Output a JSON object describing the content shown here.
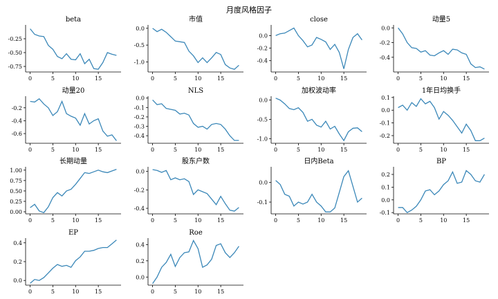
{
  "figure": {
    "title": "月度风格因子"
  },
  "chart_data": [
    {
      "type": "line",
      "title": "beta",
      "x": [
        0,
        1,
        2,
        3,
        4,
        5,
        6,
        7,
        8,
        9,
        10,
        11,
        12,
        13,
        14,
        15,
        16,
        17,
        18,
        19
      ],
      "values": [
        -0.07,
        -0.17,
        -0.2,
        -0.21,
        -0.37,
        -0.44,
        -0.57,
        -0.61,
        -0.52,
        -0.62,
        -0.63,
        -0.52,
        -0.7,
        -0.62,
        -0.79,
        -0.8,
        -0.68,
        -0.5,
        -0.53,
        -0.55
      ],
      "xticks": [
        0,
        5,
        10,
        15
      ],
      "yticks": [
        -0.25,
        -0.5,
        -0.75
      ],
      "ytick_labels": [
        "-0.25",
        "-0.50",
        "-0.75"
      ],
      "ylim": [
        -0.85,
        0.0
      ]
    },
    {
      "type": "line",
      "title": "市值",
      "x": [
        0,
        1,
        2,
        3,
        4,
        5,
        6,
        7,
        8,
        9,
        10,
        11,
        12,
        13,
        14,
        15,
        16,
        17,
        18,
        19
      ],
      "values": [
        0.0,
        -0.1,
        -0.03,
        -0.12,
        -0.25,
        -0.38,
        -0.4,
        -0.42,
        -0.68,
        -0.82,
        -1.02,
        -0.88,
        -1.02,
        -0.88,
        -0.72,
        -0.78,
        -1.08,
        -1.18,
        -1.22,
        -1.1
      ],
      "xticks": [
        0,
        5,
        10,
        15
      ],
      "yticks": [
        0.0,
        -0.5,
        -1.0
      ],
      "ytick_labels": [
        "0.0",
        "-0.5",
        "-1.0"
      ],
      "ylim": [
        -1.3,
        0.1
      ]
    },
    {
      "type": "line",
      "title": "close",
      "x": [
        0,
        1,
        2,
        3,
        4,
        5,
        6,
        7,
        8,
        9,
        10,
        11,
        12,
        13,
        14,
        15,
        16,
        17,
        18,
        19
      ],
      "values": [
        0.0,
        0.03,
        0.04,
        0.08,
        0.12,
        0.0,
        -0.08,
        -0.18,
        -0.15,
        -0.03,
        -0.06,
        -0.1,
        -0.22,
        -0.14,
        -0.27,
        -0.53,
        -0.22,
        -0.03,
        0.03,
        -0.07
      ],
      "xticks": [
        0,
        5,
        10,
        15
      ],
      "yticks": [
        0.0,
        -0.2,
        -0.4
      ],
      "ytick_labels": [
        "0.0",
        "-0.2",
        "-0.4"
      ],
      "ylim": [
        -0.58,
        0.17
      ]
    },
    {
      "type": "line",
      "title": "动量5",
      "x": [
        0,
        1,
        2,
        3,
        4,
        5,
        6,
        7,
        8,
        9,
        10,
        11,
        12,
        13,
        14,
        15,
        16,
        17,
        18,
        19
      ],
      "values": [
        0.0,
        -0.08,
        -0.2,
        -0.27,
        -0.28,
        -0.33,
        -0.31,
        -0.37,
        -0.38,
        -0.34,
        -0.31,
        -0.36,
        -0.29,
        -0.3,
        -0.34,
        -0.36,
        -0.49,
        -0.54,
        -0.53,
        -0.56
      ],
      "xticks": [
        0,
        5,
        10,
        15
      ],
      "yticks": [
        0.0,
        -0.2,
        -0.4
      ],
      "ytick_labels": [
        "0.0",
        "-0.2",
        "-0.4"
      ],
      "ylim": [
        -0.6,
        0.04
      ]
    },
    {
      "type": "line",
      "title": "动量20",
      "x": [
        0,
        1,
        2,
        3,
        4,
        5,
        6,
        7,
        8,
        9,
        10,
        11,
        12,
        13,
        14,
        15,
        16,
        17,
        18,
        19
      ],
      "values": [
        -0.1,
        -0.11,
        -0.06,
        -0.14,
        -0.2,
        -0.32,
        -0.26,
        -0.1,
        -0.29,
        -0.33,
        -0.36,
        -0.47,
        -0.29,
        -0.45,
        -0.4,
        -0.37,
        -0.56,
        -0.64,
        -0.62,
        -0.71
      ],
      "xticks": [
        0,
        5,
        10,
        15
      ],
      "yticks": [
        -0.2,
        -0.4,
        -0.6
      ],
      "ytick_labels": [
        "-0.2",
        "-0.4",
        "-0.6"
      ],
      "ylim": [
        -0.75,
        -0.02
      ]
    },
    {
      "type": "line",
      "title": "NLS",
      "x": [
        0,
        1,
        2,
        3,
        4,
        5,
        6,
        7,
        8,
        9,
        10,
        11,
        12,
        13,
        14,
        15,
        16,
        17,
        18,
        19
      ],
      "values": [
        -0.02,
        -0.07,
        -0.06,
        -0.11,
        -0.12,
        -0.13,
        -0.17,
        -0.16,
        -0.18,
        -0.27,
        -0.31,
        -0.3,
        -0.33,
        -0.28,
        -0.27,
        -0.28,
        -0.33,
        -0.4,
        -0.45,
        -0.45
      ],
      "xticks": [
        0,
        5,
        10,
        15
      ],
      "yticks": [
        0.0,
        -0.1,
        -0.2,
        -0.3,
        -0.4
      ],
      "ytick_labels": [
        "0.0",
        "-0.1",
        "-0.2",
        "-0.3",
        "-0.4"
      ],
      "ylim": [
        -0.48,
        0.02
      ]
    },
    {
      "type": "line",
      "title": "加权波动率",
      "x": [
        0,
        1,
        2,
        3,
        4,
        5,
        6,
        7,
        8,
        9,
        10,
        11,
        12,
        13,
        14,
        15,
        16,
        17,
        18,
        19
      ],
      "values": [
        0.05,
        0.0,
        -0.1,
        -0.22,
        -0.25,
        -0.2,
        -0.32,
        -0.55,
        -0.5,
        -0.65,
        -0.7,
        -0.55,
        -0.75,
        -0.68,
        -0.88,
        -1.05,
        -0.82,
        -0.73,
        -0.72,
        -0.82
      ],
      "xticks": [
        0,
        5,
        10,
        15
      ],
      "yticks": [
        0.0,
        -0.5,
        -1.0
      ],
      "ytick_labels": [
        "0.0",
        "-0.5",
        "-1.0"
      ],
      "ylim": [
        -1.12,
        0.1
      ]
    },
    {
      "type": "line",
      "title": "1年日均换手",
      "x": [
        0,
        1,
        2,
        3,
        4,
        5,
        6,
        7,
        8,
        9,
        10,
        11,
        12,
        13,
        14,
        15,
        16,
        17,
        18,
        19
      ],
      "values": [
        0.02,
        0.04,
        0.0,
        0.06,
        0.03,
        0.09,
        0.05,
        0.07,
        0.02,
        -0.07,
        -0.01,
        -0.04,
        -0.08,
        -0.13,
        -0.18,
        -0.11,
        -0.16,
        -0.24,
        -0.24,
        -0.22
      ],
      "xticks": [
        0,
        5,
        10,
        15
      ],
      "yticks": [
        0.1,
        0.0,
        -0.1,
        -0.2
      ],
      "ytick_labels": [
        "0.1",
        "0.0",
        "-0.1",
        "-0.2"
      ],
      "ylim": [
        -0.26,
        0.11
      ]
    },
    {
      "type": "line",
      "title": "长期动量",
      "x": [
        0,
        1,
        2,
        3,
        4,
        5,
        6,
        7,
        8,
        9,
        10,
        11,
        12,
        13,
        14,
        15,
        16,
        17,
        18,
        19
      ],
      "values": [
        0.1,
        0.18,
        0.02,
        -0.02,
        0.12,
        0.34,
        0.46,
        0.38,
        0.5,
        0.54,
        0.66,
        0.8,
        0.94,
        0.92,
        0.96,
        1.0,
        0.96,
        0.94,
        0.98,
        1.02
      ],
      "xticks": [
        0,
        5,
        10,
        15
      ],
      "yticks": [
        0.0,
        0.25,
        0.5,
        0.75,
        1.0
      ],
      "ytick_labels": [
        "0.00",
        "0.25",
        "0.50",
        "0.75",
        "1.00"
      ],
      "ylim": [
        -0.05,
        1.08
      ]
    },
    {
      "type": "line",
      "title": "股东户数",
      "x": [
        0,
        1,
        2,
        3,
        4,
        5,
        6,
        7,
        8,
        9,
        10,
        11,
        12,
        13,
        14,
        15,
        16,
        17,
        18,
        19
      ],
      "values": [
        0.02,
        0.01,
        -0.01,
        0.01,
        -0.09,
        -0.07,
        -0.09,
        -0.08,
        -0.11,
        -0.25,
        -0.2,
        -0.22,
        -0.24,
        -0.3,
        -0.36,
        -0.27,
        -0.35,
        -0.42,
        -0.43,
        -0.39
      ],
      "xticks": [
        0,
        5,
        10,
        15
      ],
      "yticks": [
        0.0,
        -0.2,
        -0.4
      ],
      "ytick_labels": [
        "0.0",
        "-0.2",
        "-0.4"
      ],
      "ylim": [
        -0.46,
        0.05
      ]
    },
    {
      "type": "line",
      "title": "日内Beta",
      "x": [
        0,
        1,
        2,
        3,
        4,
        5,
        6,
        7,
        8,
        9,
        10,
        11,
        12,
        13,
        14,
        15,
        16,
        17,
        18,
        19
      ],
      "values": [
        0.01,
        -0.01,
        -0.06,
        -0.07,
        -0.12,
        -0.1,
        -0.11,
        -0.1,
        -0.06,
        -0.1,
        -0.12,
        -0.15,
        -0.15,
        -0.13,
        -0.05,
        0.03,
        0.06,
        -0.02,
        -0.1,
        -0.08
      ],
      "xticks": [
        0,
        5,
        10,
        15
      ],
      "yticks": [
        0.0,
        -0.1
      ],
      "ytick_labels": [
        "0.0",
        "-0.1"
      ],
      "ylim": [
        -0.16,
        0.08
      ]
    },
    {
      "type": "line",
      "title": "BP",
      "x": [
        0,
        1,
        2,
        3,
        4,
        5,
        6,
        7,
        8,
        9,
        10,
        11,
        12,
        13,
        14,
        15,
        16,
        17,
        18,
        19
      ],
      "values": [
        -0.06,
        -0.06,
        -0.1,
        -0.08,
        -0.05,
        0.0,
        0.07,
        0.08,
        0.04,
        0.07,
        0.12,
        0.15,
        0.22,
        0.13,
        0.14,
        0.23,
        0.2,
        0.15,
        0.14,
        0.2
      ],
      "xticks": [
        0,
        5,
        10,
        15
      ],
      "yticks": [
        0.2,
        0.1,
        0.0,
        -0.1
      ],
      "ytick_labels": [
        "0.2",
        "0.1",
        "0.0",
        "-0.1"
      ],
      "ylim": [
        -0.11,
        0.26
      ]
    },
    {
      "type": "line",
      "title": "EP",
      "x": [
        0,
        1,
        2,
        3,
        4,
        5,
        6,
        7,
        8,
        9,
        10,
        11,
        12,
        13,
        14,
        15,
        16,
        17,
        18,
        19
      ],
      "values": [
        -0.03,
        0.01,
        0.0,
        0.03,
        0.08,
        0.13,
        0.17,
        0.15,
        0.16,
        0.14,
        0.21,
        0.25,
        0.31,
        0.31,
        0.32,
        0.34,
        0.35,
        0.35,
        0.39,
        0.43
      ],
      "xticks": [
        0,
        5,
        10,
        15
      ],
      "yticks": [
        0.0,
        0.2,
        0.4
      ],
      "ytick_labels": [
        "0.0",
        "0.2",
        "0.4"
      ],
      "ylim": [
        -0.05,
        0.45
      ]
    },
    {
      "type": "line",
      "title": "Roe",
      "x": [
        0,
        1,
        2,
        3,
        4,
        5,
        6,
        7,
        8,
        9,
        10,
        11,
        12,
        13,
        14,
        15,
        16,
        17,
        18,
        19
      ],
      "values": [
        -0.08,
        0.0,
        0.12,
        0.18,
        0.28,
        0.13,
        0.24,
        0.3,
        0.31,
        0.45,
        0.35,
        0.12,
        0.15,
        0.22,
        0.39,
        0.41,
        0.3,
        0.24,
        0.3,
        0.38
      ],
      "xticks": [
        0,
        5,
        10,
        15
      ],
      "yticks": [
        0.0,
        0.2,
        0.4
      ],
      "ytick_labels": [
        "0.0",
        "0.2",
        "0.4"
      ],
      "ylim": [
        -0.1,
        0.48
      ]
    }
  ]
}
